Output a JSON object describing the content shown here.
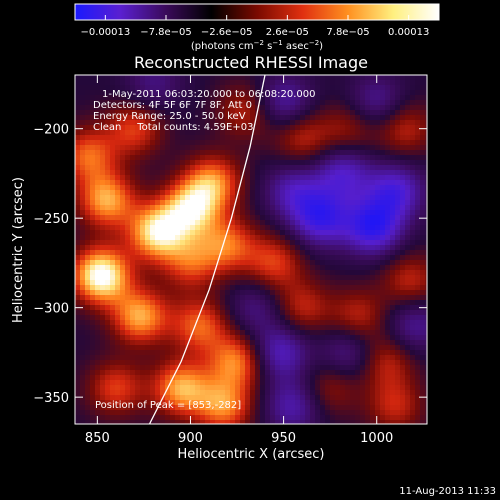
{
  "colorbar": {
    "ticks": [
      "−0.00013",
      "−7.8e−05",
      "−2.6e−05",
      "2.6e−05",
      "7.8e−05",
      "0.00013"
    ],
    "units_main": "(photons cm",
    "units_exp1": "−2",
    "units_mid": " s",
    "units_exp2": "−1",
    "units_end": " asec",
    "units_exp3": "−2",
    "units_close": ")",
    "colors": [
      "#1a1aff",
      "#5a1fd0",
      "#3a0a5a",
      "#000000",
      "#7a0a00",
      "#e03010",
      "#ff9020",
      "#fff080",
      "#ffffff"
    ]
  },
  "plot": {
    "title": "Reconstructed RHESSI Image",
    "info_lines": [
      "1-May-2011 06:03:20.000 to 06:08:20.000",
      "Detectors: 4F 5F 6F 7F 8F, Att 0",
      "Energy Range: 25.0 - 50.0 keV",
      "Clean     Total counts: 4.59E+03"
    ],
    "peak_label": "Position of Peak = [853,-282]",
    "timestamp": "11-Aug-2013 11:33"
  },
  "chart_data": {
    "type": "heatmap",
    "title": "Reconstructed RHESSI Image",
    "xlabel": "Heliocentric X (arcsec)",
    "ylabel": "Heliocentric Y (arcsec)",
    "xlim": [
      838,
      1027
    ],
    "ylim": [
      -365,
      -170
    ],
    "x_ticks": [
      850,
      900,
      950,
      1000
    ],
    "y_ticks": [
      -200,
      -250,
      -300,
      -350
    ],
    "colorbar_range": [
      -0.00013,
      0.00013
    ],
    "peak_position": [
      853,
      -282
    ],
    "limb_curve": [
      [
        878,
        -365
      ],
      [
        895,
        -330
      ],
      [
        910,
        -290
      ],
      [
        922,
        -250
      ],
      [
        932,
        -210
      ],
      [
        940,
        -170
      ]
    ],
    "blobs": [
      {
        "x": 852,
        "y": -282,
        "value": 0.00013
      },
      {
        "x": 882,
        "y": -258,
        "value": 0.00011
      },
      {
        "x": 900,
        "y": -245,
        "value": 0.0001
      },
      {
        "x": 912,
        "y": -230,
        "value": 8e-05
      },
      {
        "x": 855,
        "y": -240,
        "value": 9e-05
      },
      {
        "x": 870,
        "y": -200,
        "value": 6e-05
      },
      {
        "x": 845,
        "y": -215,
        "value": 7e-05
      },
      {
        "x": 920,
        "y": -265,
        "value": 7e-05
      },
      {
        "x": 900,
        "y": -275,
        "value": 6e-05
      },
      {
        "x": 873,
        "y": -305,
        "value": 9e-05
      },
      {
        "x": 905,
        "y": -310,
        "value": 7e-05
      },
      {
        "x": 925,
        "y": -330,
        "value": 8e-05
      },
      {
        "x": 895,
        "y": -345,
        "value": 9e-05
      },
      {
        "x": 860,
        "y": -345,
        "value": 6e-05
      },
      {
        "x": 918,
        "y": -355,
        "value": 8e-05
      },
      {
        "x": 930,
        "y": -190,
        "value": 5e-05
      },
      {
        "x": 960,
        "y": -205,
        "value": 5e-05
      },
      {
        "x": 985,
        "y": -200,
        "value": 4e-05
      },
      {
        "x": 1015,
        "y": -200,
        "value": 5e-05
      },
      {
        "x": 945,
        "y": -275,
        "value": 6e-05
      },
      {
        "x": 960,
        "y": -300,
        "value": 5e-05
      },
      {
        "x": 990,
        "y": -305,
        "value": 5e-05
      },
      {
        "x": 1018,
        "y": -285,
        "value": 5e-05
      },
      {
        "x": 1005,
        "y": -330,
        "value": 5e-05
      },
      {
        "x": 975,
        "y": -345,
        "value": 4e-05
      },
      {
        "x": 1010,
        "y": -355,
        "value": 5e-05
      },
      {
        "x": 970,
        "y": -250,
        "value": -9e-05
      },
      {
        "x": 998,
        "y": -255,
        "value": -0.0001
      },
      {
        "x": 1010,
        "y": -235,
        "value": -8e-05
      },
      {
        "x": 955,
        "y": -235,
        "value": -6e-05
      },
      {
        "x": 982,
        "y": -225,
        "value": -7e-05
      },
      {
        "x": 950,
        "y": -185,
        "value": -6e-05
      },
      {
        "x": 1000,
        "y": -185,
        "value": -5e-05
      },
      {
        "x": 948,
        "y": -325,
        "value": -7e-05
      },
      {
        "x": 985,
        "y": -325,
        "value": -5e-05
      },
      {
        "x": 955,
        "y": -355,
        "value": -6e-05
      },
      {
        "x": 1020,
        "y": -310,
        "value": -5e-05
      },
      {
        "x": 880,
        "y": -175,
        "value": -4e-05
      },
      {
        "x": 935,
        "y": -300,
        "value": -4e-05
      }
    ]
  }
}
